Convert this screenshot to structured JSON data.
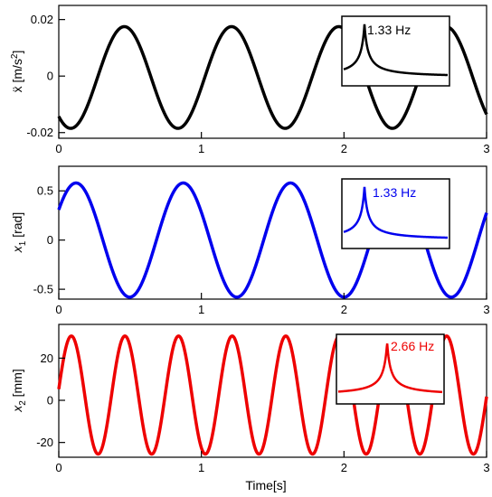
{
  "chart_data": [
    {
      "type": "line",
      "panel": "top",
      "xlim": [
        0,
        3
      ],
      "ylim": [
        -0.022,
        0.025
      ],
      "x_ticks": [
        "0",
        "1",
        "2",
        "3"
      ],
      "y_ticks": [
        {
          "value": 0.02,
          "label": "0.02"
        },
        {
          "value": 0,
          "label": "0"
        },
        {
          "value": -0.02,
          "label": "-0.02"
        }
      ],
      "ylabel": {
        "base": "ẍ [m/s",
        "sup": "2",
        "tail": "]"
      },
      "xlabel": "",
      "color": "#000000",
      "series": [
        {
          "signal": "sine",
          "frequency_hz": 1.33,
          "amplitude": 0.018,
          "offset": -0.0005,
          "phase_rad": -2.27,
          "x_range": [
            0,
            3
          ]
        }
      ],
      "inset": {
        "label": "1.33 Hz",
        "label_color": "#000000",
        "peak_color": "#000000",
        "peak_position": 0.2
      }
    },
    {
      "type": "line",
      "panel": "middle",
      "xlim": [
        0,
        3
      ],
      "ylim": [
        -0.6,
        0.75
      ],
      "x_ticks": [
        "0",
        "1",
        "2",
        "3"
      ],
      "y_ticks": [
        {
          "value": 0.5,
          "label": "0.5"
        },
        {
          "value": 0,
          "label": "0"
        },
        {
          "value": -0.5,
          "label": "-0.5"
        }
      ],
      "ylabel": {
        "base": "x",
        "sub": "1",
        "tail": " [rad]"
      },
      "xlabel": "",
      "color": "#0000ee",
      "series": [
        {
          "signal": "sine",
          "frequency_hz": 1.33,
          "amplitude": 0.58,
          "offset": 0,
          "phase_rad": 0.56,
          "x_range": [
            0,
            3
          ]
        }
      ],
      "inset": {
        "label": "1.33 Hz",
        "label_color": "#0000ee",
        "peak_color": "#0000ee",
        "peak_position": 0.2
      }
    },
    {
      "type": "line",
      "panel": "bottom",
      "xlim": [
        0,
        3
      ],
      "ylim": [
        -27,
        36
      ],
      "x_ticks": [
        "0",
        "1",
        "2",
        "3"
      ],
      "y_ticks": [
        {
          "value": 20,
          "label": "20"
        },
        {
          "value": 0,
          "label": "0"
        },
        {
          "value": -20,
          "label": "-20"
        }
      ],
      "ylabel": {
        "base": "x",
        "sub": "2",
        "tail": " [mm]"
      },
      "xlabel": "Time[s]",
      "color": "#ee0000",
      "series": [
        {
          "signal": "sine",
          "frequency_hz": 2.66,
          "amplitude": 28,
          "offset": 2.5,
          "phase_rad": 0.1,
          "x_range": [
            0,
            3
          ]
        }
      ],
      "inset": {
        "label": "2.66 Hz",
        "label_color": "#ee0000",
        "peak_color": "#ee0000",
        "peak_position": 0.47
      }
    }
  ]
}
